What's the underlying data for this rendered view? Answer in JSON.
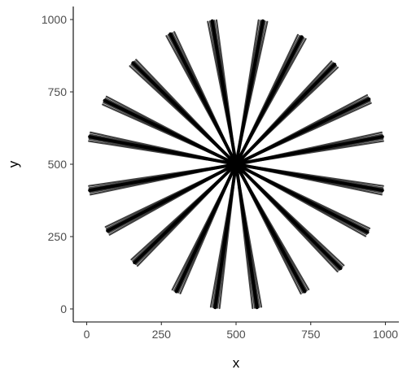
{
  "chart_data": {
    "type": "line",
    "title": "",
    "xlabel": "x",
    "ylabel": "y",
    "xlim": [
      -45,
      1045
    ],
    "ylim": [
      -45,
      1045
    ],
    "x_ticks": [
      0,
      250,
      500,
      750,
      1000
    ],
    "y_ticks": [
      0,
      250,
      500,
      750,
      1000
    ],
    "x_tick_labels": [
      "0",
      "250",
      "500",
      "750",
      "1000"
    ],
    "y_tick_labels": [
      "0",
      "250",
      "500",
      "750",
      "1000"
    ],
    "grid": false,
    "legend": "none",
    "line_color": "#000000",
    "center": [
      500,
      500
    ],
    "spoke_ends": [
      [
        590,
        995
      ],
      [
        720,
        940
      ],
      [
        830,
        845
      ],
      [
        945,
        725
      ],
      [
        990,
        595
      ],
      [
        990,
        410
      ],
      [
        940,
        265
      ],
      [
        850,
        140
      ],
      [
        730,
        60
      ],
      [
        570,
        5
      ],
      [
        430,
        5
      ],
      [
        300,
        60
      ],
      [
        160,
        160
      ],
      [
        70,
        270
      ],
      [
        10,
        410
      ],
      [
        10,
        595
      ],
      [
        60,
        720
      ],
      [
        155,
        850
      ],
      [
        280,
        950
      ],
      [
        420,
        995
      ]
    ]
  }
}
